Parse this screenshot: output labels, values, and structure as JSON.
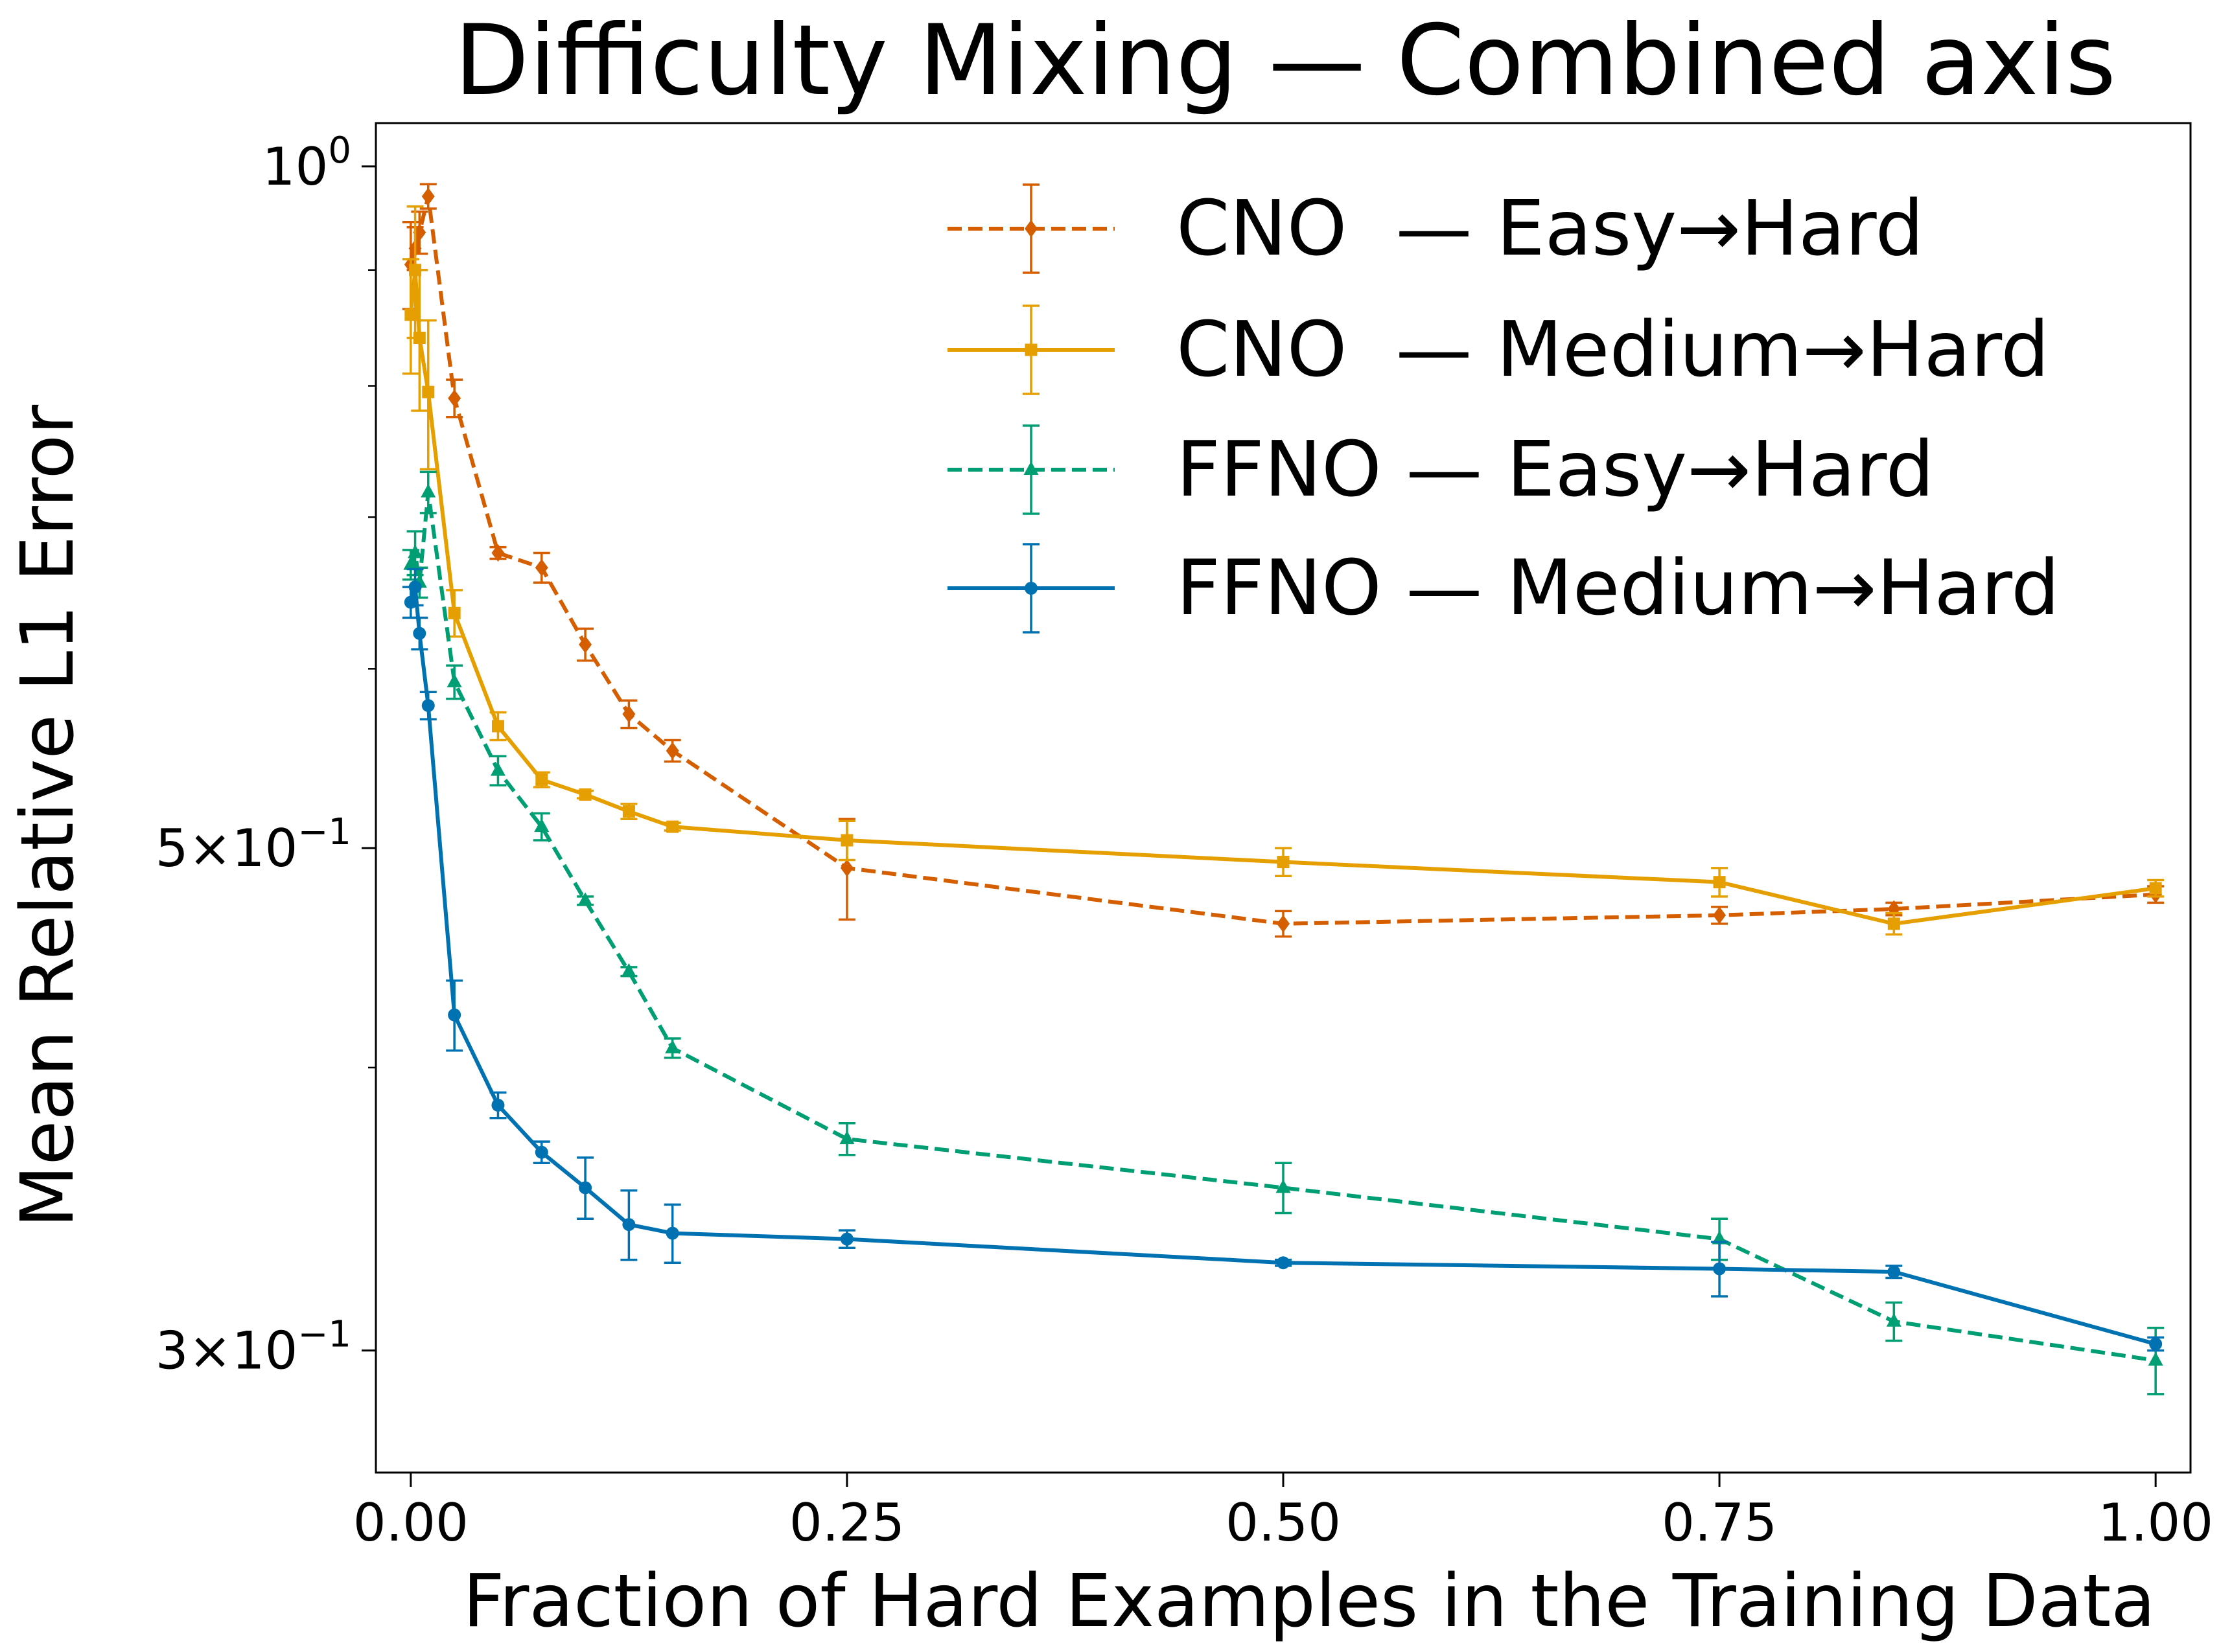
{
  "chart_data": {
    "type": "line",
    "title": "Difficulty Mixing — Combined axis",
    "xlabel": "Fraction of Hard Examples in the Training Data",
    "ylabel": "Mean Relative L1 Error",
    "xlim": [
      -0.02,
      1.02
    ],
    "ylim": [
      0.265,
      1.045
    ],
    "yscale": "log",
    "x_ticks": [
      {
        "value": 0.0,
        "label": "0.00"
      },
      {
        "value": 0.25,
        "label": "0.25"
      },
      {
        "value": 0.5,
        "label": "0.50"
      },
      {
        "value": 0.75,
        "label": "0.75"
      },
      {
        "value": 1.0,
        "label": "1.00"
      }
    ],
    "y_ticks": [
      {
        "value": 1.0,
        "mantissa": "",
        "exponent": "0"
      },
      {
        "value": 0.5,
        "mantissa": "5×",
        "exponent": "−1"
      },
      {
        "value": 0.3,
        "mantissa": "3×",
        "exponent": "−1"
      }
    ],
    "y_tick_base": "10",
    "legend_position": "top-right",
    "series": [
      {
        "name": "CNO  — Easy→Hard",
        "color": "#d55e00",
        "dash": "dashed",
        "marker": "diamond",
        "x": [
          0,
          0.0025,
          0.005,
          0.01,
          0.025,
          0.05,
          0.075,
          0.1,
          0.125,
          0.15,
          0.25,
          0.5,
          0.75,
          0.85,
          1.0
        ],
        "y": [
          0.905,
          0.92,
          0.935,
          0.97,
          0.79,
          0.675,
          0.665,
          0.615,
          0.573,
          0.552,
          0.49,
          0.463,
          0.467,
          0.47,
          0.477
        ],
        "err": [
          0.04,
          0.02,
          0.02,
          0.012,
          0.015,
          0.004,
          0.01,
          0.01,
          0.008,
          0.006,
          0.025,
          0.006,
          0.004,
          0.003,
          0.004
        ]
      },
      {
        "name": "CNO  — Medium→Hard",
        "color": "#e69f00",
        "dash": "solid",
        "marker": "square",
        "x": [
          0,
          0.0025,
          0.005,
          0.01,
          0.025,
          0.05,
          0.075,
          0.1,
          0.125,
          0.15,
          0.25,
          0.5,
          0.75,
          0.85,
          1.0
        ],
        "y": [
          0.86,
          0.9,
          0.84,
          0.795,
          0.635,
          0.566,
          0.536,
          0.528,
          0.519,
          0.511,
          0.504,
          0.493,
          0.483,
          0.463,
          0.48
        ],
        "err": [
          0.05,
          0.06,
          0.06,
          0.06,
          0.015,
          0.008,
          0.004,
          0.002,
          0.004,
          0.002,
          0.01,
          0.007,
          0.007,
          0.005,
          0.004
        ]
      },
      {
        "name": "FFNO — Easy→Hard",
        "color": "#009e73",
        "dash": "dashed",
        "marker": "triangle",
        "x": [
          0,
          0.0025,
          0.005,
          0.01,
          0.025,
          0.05,
          0.075,
          0.1,
          0.125,
          0.15,
          0.25,
          0.5,
          0.75,
          0.85,
          1.0
        ],
        "y": [
          0.667,
          0.675,
          0.655,
          0.718,
          0.592,
          0.541,
          0.511,
          0.474,
          0.441,
          0.408,
          0.372,
          0.354,
          0.336,
          0.309,
          0.297
        ],
        "err": [
          0.01,
          0.015,
          0.01,
          0.015,
          0.01,
          0.008,
          0.007,
          0.002,
          0.002,
          0.004,
          0.006,
          0.009,
          0.007,
          0.006,
          0.01
        ]
      },
      {
        "name": "FFNO — Medium→Hard",
        "color": "#0072b2",
        "dash": "solid",
        "marker": "circle",
        "x": [
          0,
          0.0025,
          0.005,
          0.01,
          0.025,
          0.05,
          0.075,
          0.1,
          0.125,
          0.15,
          0.25,
          0.5,
          0.75,
          0.85,
          1.0
        ],
        "y": [
          0.642,
          0.652,
          0.622,
          0.578,
          0.422,
          0.385,
          0.367,
          0.354,
          0.341,
          0.338,
          0.336,
          0.328,
          0.326,
          0.325,
          0.302
        ],
        "err": [
          0.01,
          0.012,
          0.01,
          0.008,
          0.015,
          0.005,
          0.004,
          0.011,
          0.012,
          0.01,
          0.003,
          0.001,
          0.009,
          0.002,
          0.002
        ]
      }
    ]
  }
}
